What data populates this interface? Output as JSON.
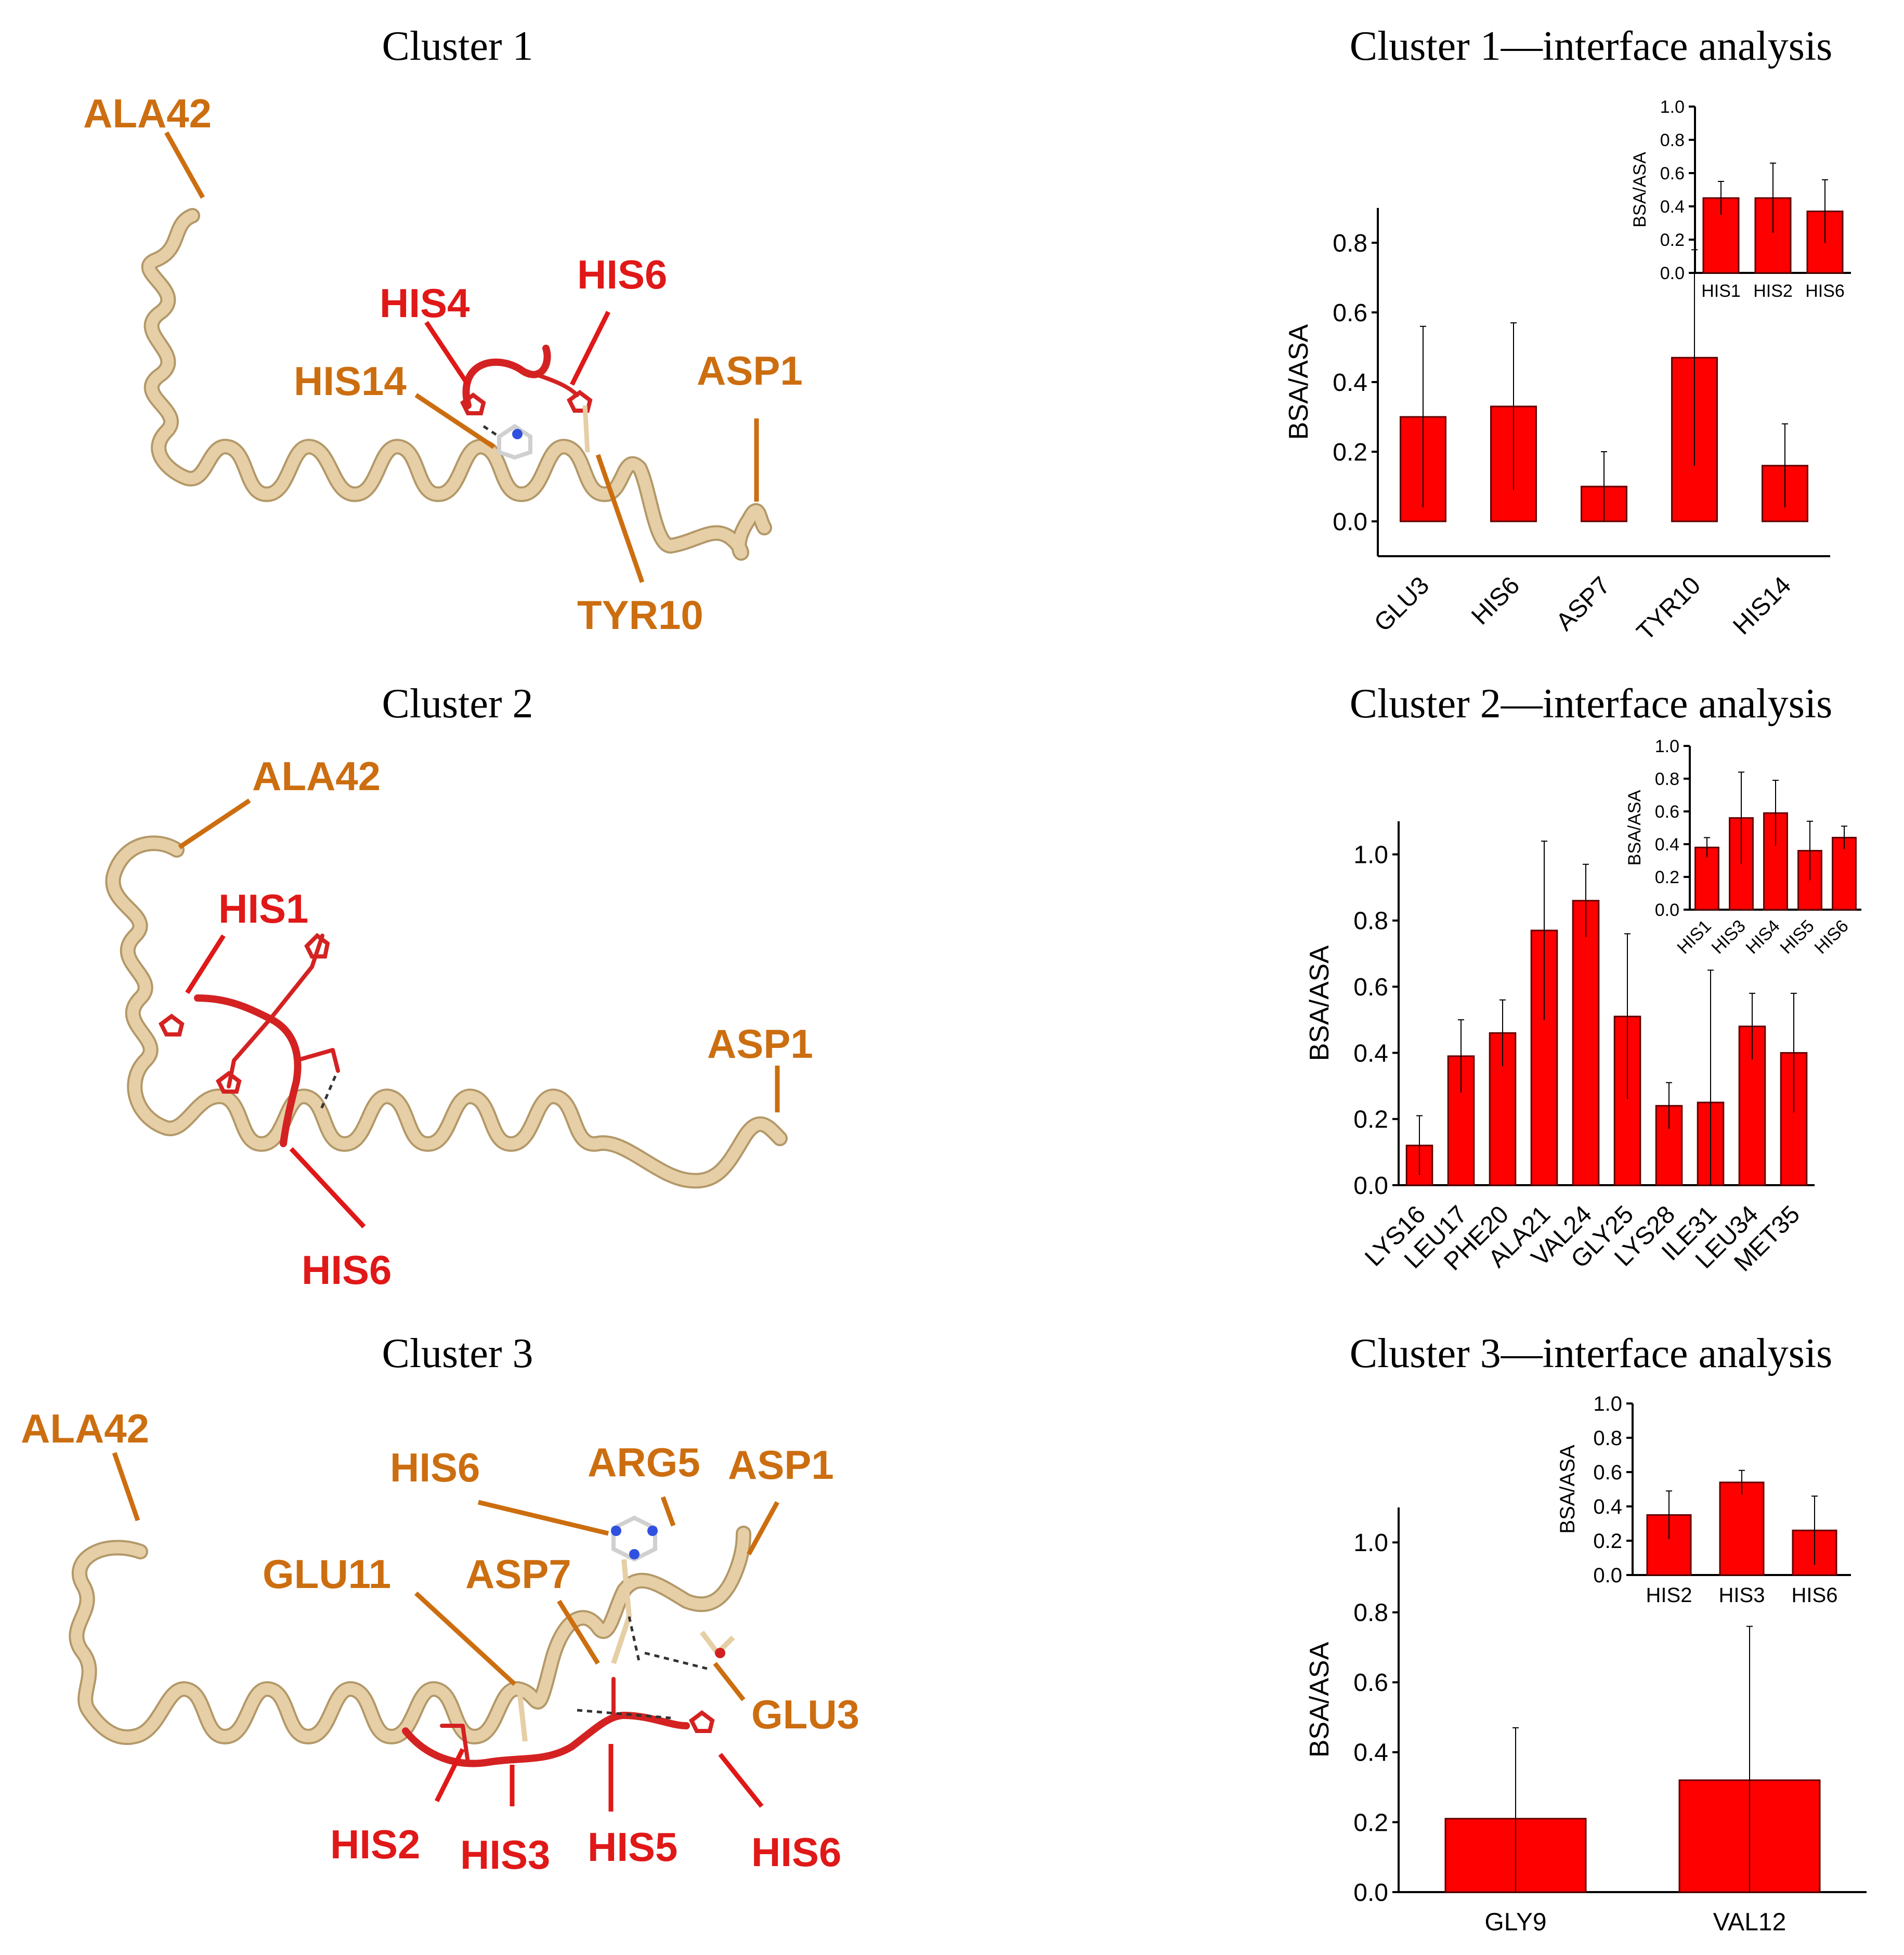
{
  "structures": [
    {
      "title": "Cluster 1",
      "labels": [
        {
          "id": "ala42",
          "text": "ALA42",
          "color": "orange"
        },
        {
          "id": "his4",
          "text": "HIS4",
          "color": "red"
        },
        {
          "id": "his6",
          "text": "HIS6",
          "color": "red"
        },
        {
          "id": "his14",
          "text": "HIS14",
          "color": "orange"
        },
        {
          "id": "asp1",
          "text": "ASP1",
          "color": "orange"
        },
        {
          "id": "tyr10",
          "text": "TYR10",
          "color": "orange"
        }
      ]
    },
    {
      "title": "Cluster 2",
      "labels": [
        {
          "id": "ala42",
          "text": "ALA42",
          "color": "orange"
        },
        {
          "id": "his1",
          "text": "HIS1",
          "color": "red"
        },
        {
          "id": "asp1",
          "text": "ASP1",
          "color": "orange"
        },
        {
          "id": "his6",
          "text": "HIS6",
          "color": "red"
        }
      ]
    },
    {
      "title": "Cluster 3",
      "labels": [
        {
          "id": "ala42",
          "text": "ALA42",
          "color": "orange"
        },
        {
          "id": "his6o",
          "text": "HIS6",
          "color": "orange"
        },
        {
          "id": "arg5",
          "text": "ARG5",
          "color": "orange"
        },
        {
          "id": "asp1",
          "text": "ASP1",
          "color": "orange"
        },
        {
          "id": "glu11",
          "text": "GLU11",
          "color": "orange"
        },
        {
          "id": "asp7",
          "text": "ASP7",
          "color": "orange"
        },
        {
          "id": "glu3",
          "text": "GLU3",
          "color": "orange"
        },
        {
          "id": "his2",
          "text": "HIS2",
          "color": "red"
        },
        {
          "id": "his3",
          "text": "HIS3",
          "color": "red"
        },
        {
          "id": "his5",
          "text": "HIS5",
          "color": "red"
        },
        {
          "id": "his6r",
          "text": "HIS6",
          "color": "red"
        }
      ]
    }
  ],
  "colors": {
    "orange": "#CC6E10",
    "red": "#E01818",
    "bar": "#FF0000",
    "ribbon": "#E6CFA6"
  },
  "chart_data": [
    {
      "type": "bar",
      "title": "Cluster 1—interface analysis",
      "ylabel": "BSA/ASA",
      "categories": [
        "GLU3",
        "HIS6",
        "ASP7",
        "TYR10",
        "HIS14"
      ],
      "values": [
        0.3,
        0.33,
        0.1,
        0.47,
        0.16
      ],
      "errors": [
        0.26,
        0.24,
        0.1,
        0.31,
        0.12
      ],
      "ylim": [
        -0.1,
        0.9
      ],
      "yticks": [
        "0.0",
        "0.2",
        "0.4",
        "0.6",
        "0.8"
      ],
      "inset": {
        "type": "bar",
        "ylabel": "BSA/ASA",
        "categories": [
          "HIS1",
          "HIS2",
          "HIS6"
        ],
        "values": [
          0.45,
          0.45,
          0.37
        ],
        "errors": [
          0.1,
          0.21,
          0.19
        ],
        "ylim": [
          0,
          1.0
        ],
        "yticks": [
          "0.0",
          "0.2",
          "0.4",
          "0.6",
          "0.8",
          "1.0"
        ]
      }
    },
    {
      "type": "bar",
      "title": "Cluster 2—interface analysis",
      "ylabel": "BSA/ASA",
      "categories": [
        "LYS16",
        "LEU17",
        "PHE20",
        "ALA21",
        "VAL24",
        "GLY25",
        "LYS28",
        "ILE31",
        "LEU34",
        "MET35"
      ],
      "values": [
        0.12,
        0.39,
        0.46,
        0.77,
        0.86,
        0.51,
        0.24,
        0.25,
        0.48,
        0.4
      ],
      "errors": [
        0.09,
        0.11,
        0.1,
        0.27,
        0.11,
        0.25,
        0.07,
        0.4,
        0.1,
        0.18
      ],
      "ylim": [
        0,
        1.1
      ],
      "yticks": [
        "0.0",
        "0.2",
        "0.4",
        "0.6",
        "0.8",
        "1.0"
      ],
      "inset": {
        "type": "bar",
        "ylabel": "BSA/ASA",
        "categories": [
          "HIS1",
          "HIS3",
          "HIS4",
          "HIS5",
          "HIS6"
        ],
        "values": [
          0.38,
          0.56,
          0.59,
          0.36,
          0.44
        ],
        "errors": [
          0.06,
          0.28,
          0.2,
          0.18,
          0.07
        ],
        "ylim": [
          0,
          1.0
        ],
        "yticks": [
          "0.0",
          "0.2",
          "0.4",
          "0.6",
          "0.8",
          "1.0"
        ]
      }
    },
    {
      "type": "bar",
      "title": "Cluster 3—interface analysis",
      "ylabel": "BSA/ASA",
      "categories": [
        "GLY9",
        "VAL12"
      ],
      "values": [
        0.21,
        0.32
      ],
      "errors": [
        0.26,
        0.44
      ],
      "ylim": [
        0,
        1.1
      ],
      "yticks": [
        "0.0",
        "0.2",
        "0.4",
        "0.6",
        "0.8",
        "1.0"
      ],
      "inset": {
        "type": "bar",
        "ylabel": "BSA/ASA",
        "categories": [
          "HIS2",
          "HIS3",
          "HIS6"
        ],
        "values": [
          0.35,
          0.54,
          0.26
        ],
        "errors": [
          0.14,
          0.07,
          0.2
        ],
        "ylim": [
          0,
          1.0
        ],
        "yticks": [
          "0.0",
          "0.2",
          "0.4",
          "0.6",
          "0.8",
          "1.0"
        ]
      }
    }
  ]
}
